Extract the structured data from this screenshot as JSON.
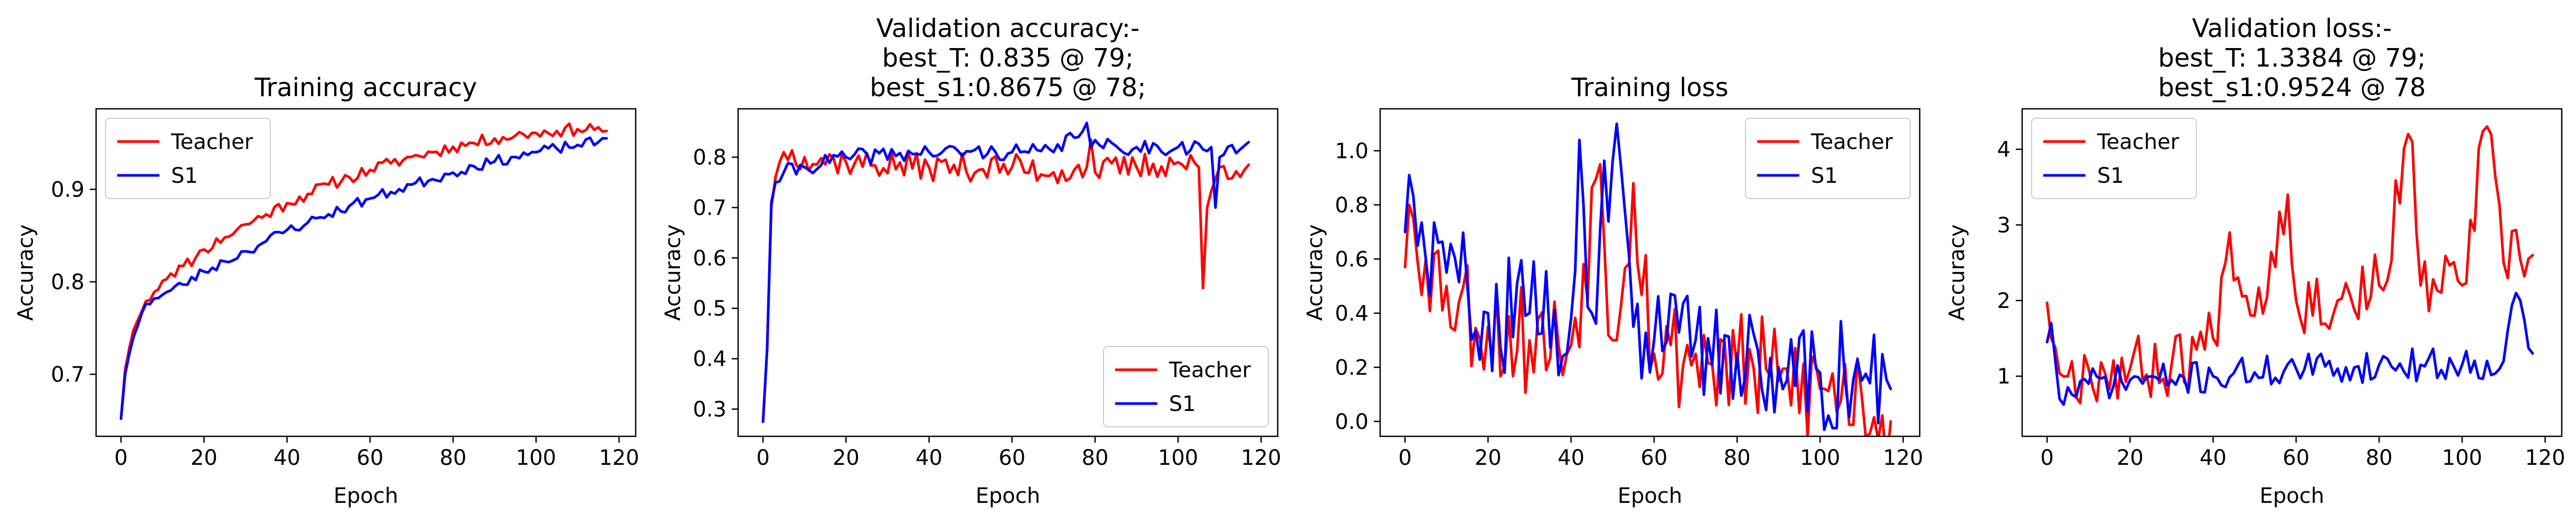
{
  "colors": {
    "Teacher": "#ff0000",
    "S1": "#0000ff"
  },
  "chart_data": [
    {
      "type": "line",
      "title": [
        "Training accuracy"
      ],
      "xlabel": "Epoch",
      "ylabel": "Accuracy",
      "xlim": [
        -6,
        124
      ],
      "ylim": [
        0.633,
        0.987
      ],
      "xticks": [
        0,
        20,
        40,
        60,
        80,
        100,
        120
      ],
      "yticks": [
        0.7,
        0.8,
        0.9
      ],
      "yticklabels": [
        "0.7",
        "0.8",
        "0.9"
      ],
      "legend": "top-left",
      "grid": false,
      "series": [
        {
          "name": "Teacher",
          "keypoints": [
            [
              0,
              0.652
            ],
            [
              1,
              0.705
            ],
            [
              2,
              0.728
            ],
            [
              3,
              0.748
            ],
            [
              4,
              0.758
            ],
            [
              5,
              0.768
            ],
            [
              6,
              0.779
            ],
            [
              8,
              0.789
            ],
            [
              10,
              0.801
            ],
            [
              12,
              0.809
            ],
            [
              15,
              0.817
            ],
            [
              18,
              0.826
            ],
            [
              20,
              0.835
            ],
            [
              25,
              0.848
            ],
            [
              30,
              0.862
            ],
            [
              35,
              0.873
            ],
            [
              40,
              0.885
            ],
            [
              45,
              0.895
            ],
            [
              50,
              0.905
            ],
            [
              55,
              0.913
            ],
            [
              60,
              0.921
            ],
            [
              65,
              0.928
            ],
            [
              70,
              0.935
            ],
            [
              75,
              0.94
            ],
            [
              80,
              0.946
            ],
            [
              85,
              0.95
            ],
            [
              90,
              0.955
            ],
            [
              95,
              0.958
            ],
            [
              100,
              0.961
            ],
            [
              105,
              0.963
            ],
            [
              110,
              0.965
            ],
            [
              115,
              0.967
            ],
            [
              117,
              0.963
            ]
          ],
          "noise": 0.007,
          "seed": 11
        },
        {
          "name": "S1",
          "keypoints": [
            [
              0,
              0.652
            ],
            [
              1,
              0.7
            ],
            [
              2,
              0.722
            ],
            [
              3,
              0.74
            ],
            [
              4,
              0.752
            ],
            [
              5,
              0.766
            ],
            [
              6,
              0.776
            ],
            [
              8,
              0.782
            ],
            [
              10,
              0.786
            ],
            [
              15,
              0.797
            ],
            [
              20,
              0.811
            ],
            [
              25,
              0.822
            ],
            [
              30,
              0.833
            ],
            [
              35,
              0.844
            ],
            [
              40,
              0.856
            ],
            [
              45,
              0.864
            ],
            [
              50,
              0.873
            ],
            [
              55,
              0.882
            ],
            [
              60,
              0.89
            ],
            [
              65,
              0.897
            ],
            [
              70,
              0.905
            ],
            [
              75,
              0.911
            ],
            [
              80,
              0.918
            ],
            [
              85,
              0.925
            ],
            [
              90,
              0.93
            ],
            [
              95,
              0.935
            ],
            [
              100,
              0.94
            ],
            [
              105,
              0.944
            ],
            [
              110,
              0.948
            ],
            [
              115,
              0.951
            ],
            [
              117,
              0.955
            ]
          ],
          "noise": 0.006,
          "seed": 23
        }
      ]
    },
    {
      "type": "line",
      "title": [
        "Validation accuracy:-",
        "best_T: 0.835 @ 79;",
        "best_s1:0.8675 @ 78;"
      ],
      "xlabel": "Epoch",
      "ylabel": "Accuracy",
      "xlim": [
        -6,
        124
      ],
      "ylim": [
        0.246,
        0.896
      ],
      "xticks": [
        0,
        20,
        40,
        60,
        80,
        100,
        120
      ],
      "yticks": [
        0.3,
        0.4,
        0.5,
        0.6,
        0.7,
        0.8
      ],
      "yticklabels": [
        "0.3",
        "0.4",
        "0.5",
        "0.6",
        "0.7",
        "0.8"
      ],
      "legend": "bottom-right",
      "grid": false,
      "series": [
        {
          "name": "Teacher",
          "keypoints": [
            [
              0,
              0.275
            ],
            [
              1,
              0.42
            ],
            [
              2,
              0.7
            ],
            [
              3,
              0.76
            ],
            [
              4,
              0.79
            ],
            [
              5,
              0.81
            ],
            [
              10,
              0.8
            ],
            [
              20,
              0.79
            ],
            [
              40,
              0.78
            ],
            [
              60,
              0.78
            ],
            [
              70,
              0.77
            ],
            [
              78,
              0.78
            ],
            [
              79,
              0.835
            ],
            [
              80,
              0.77
            ],
            [
              90,
              0.78
            ],
            [
              100,
              0.79
            ],
            [
              105,
              0.78
            ],
            [
              106,
              0.54
            ],
            [
              107,
              0.7
            ],
            [
              110,
              0.78
            ],
            [
              117,
              0.785
            ]
          ],
          "noise": 0.028,
          "seed": 37
        },
        {
          "name": "S1",
          "keypoints": [
            [
              0,
              0.275
            ],
            [
              1,
              0.42
            ],
            [
              2,
              0.71
            ],
            [
              3,
              0.75
            ],
            [
              5,
              0.77
            ],
            [
              10,
              0.78
            ],
            [
              20,
              0.8
            ],
            [
              40,
              0.81
            ],
            [
              60,
              0.81
            ],
            [
              70,
              0.81
            ],
            [
              78,
              0.868
            ],
            [
              79,
              0.82
            ],
            [
              90,
              0.82
            ],
            [
              100,
              0.82
            ],
            [
              108,
              0.82
            ],
            [
              109,
              0.7
            ],
            [
              110,
              0.8
            ],
            [
              117,
              0.83
            ]
          ],
          "noise": 0.016,
          "seed": 41
        }
      ]
    },
    {
      "type": "line",
      "title": [
        "Training loss"
      ],
      "xlabel": "Epoch",
      "ylabel": "Accuracy",
      "xlim": [
        -6,
        124
      ],
      "ylim": [
        -0.055,
        1.155
      ],
      "xticks": [
        0,
        20,
        40,
        60,
        80,
        100,
        120
      ],
      "yticks": [
        0.0,
        0.2,
        0.4,
        0.6,
        0.8,
        1.0
      ],
      "yticklabels": [
        "0.0",
        "0.2",
        "0.4",
        "0.6",
        "0.8",
        "1.0"
      ],
      "legend": "top-right",
      "grid": false,
      "series": [
        {
          "name": "Teacher",
          "keypoints": [
            [
              0,
              0.57
            ],
            [
              1,
              0.8
            ],
            [
              5,
              0.6
            ],
            [
              10,
              0.5
            ],
            [
              20,
              0.35
            ],
            [
              30,
              0.3
            ],
            [
              40,
              0.28
            ],
            [
              47,
              0.95
            ],
            [
              50,
              0.3
            ],
            [
              55,
              0.88
            ],
            [
              60,
              0.25
            ],
            [
              70,
              0.25
            ],
            [
              80,
              0.2
            ],
            [
              90,
              0.15
            ],
            [
              100,
              0.12
            ],
            [
              110,
              0.1
            ],
            [
              117,
              0.0
            ]
          ],
          "noise": 0.22,
          "seed": 53
        },
        {
          "name": "S1",
          "keypoints": [
            [
              0,
              0.7
            ],
            [
              1,
              0.91
            ],
            [
              5,
              0.6
            ],
            [
              10,
              0.55
            ],
            [
              20,
              0.4
            ],
            [
              30,
              0.4
            ],
            [
              40,
              0.38
            ],
            [
              42,
              1.04
            ],
            [
              45,
              0.4
            ],
            [
              51,
              1.1
            ],
            [
              55,
              0.35
            ],
            [
              60,
              0.3
            ],
            [
              70,
              0.3
            ],
            [
              80,
              0.25
            ],
            [
              90,
              0.2
            ],
            [
              100,
              0.18
            ],
            [
              110,
              0.15
            ],
            [
              117,
              0.12
            ]
          ],
          "noise": 0.22,
          "seed": 59
        }
      ]
    },
    {
      "type": "line",
      "title": [
        "Validation loss:-",
        "best_T: 1.3384 @ 79;",
        "best_s1:0.9524 @ 78"
      ],
      "xlabel": "Epoch",
      "ylabel": "Accuracy",
      "xlim": [
        -6,
        124
      ],
      "ylim": [
        0.205,
        4.535
      ],
      "xticks": [
        0,
        20,
        40,
        60,
        80,
        100,
        120
      ],
      "yticks": [
        1,
        2,
        3,
        4
      ],
      "yticklabels": [
        "1",
        "2",
        "3",
        "4"
      ],
      "legend": "top-left",
      "grid": false,
      "series": [
        {
          "name": "Teacher",
          "keypoints": [
            [
              0,
              1.97
            ],
            [
              1,
              1.5
            ],
            [
              5,
              1.0
            ],
            [
              10,
              1.1
            ],
            [
              20,
              1.1
            ],
            [
              30,
              1.15
            ],
            [
              40,
              1.5
            ],
            [
              44,
              2.9
            ],
            [
              50,
              1.8
            ],
            [
              58,
              3.4
            ],
            [
              60,
              2.0
            ],
            [
              70,
              2.0
            ],
            [
              80,
              2.2
            ],
            [
              88,
              4.1
            ],
            [
              90,
              2.2
            ],
            [
              100,
              2.2
            ],
            [
              106,
              4.3
            ],
            [
              110,
              2.5
            ],
            [
              117,
              2.6
            ]
          ],
          "noise": 0.45,
          "seed": 67
        },
        {
          "name": "S1",
          "keypoints": [
            [
              0,
              1.45
            ],
            [
              1,
              1.7
            ],
            [
              3,
              0.7
            ],
            [
              10,
              0.9
            ],
            [
              20,
              0.95
            ],
            [
              30,
              0.95
            ],
            [
              40,
              1.0
            ],
            [
              50,
              1.05
            ],
            [
              60,
              1.1
            ],
            [
              70,
              1.1
            ],
            [
              80,
              1.15
            ],
            [
              90,
              1.15
            ],
            [
              100,
              1.15
            ],
            [
              110,
              1.2
            ],
            [
              113,
              2.1
            ],
            [
              117,
              1.3
            ]
          ],
          "noise": 0.22,
          "seed": 71
        }
      ]
    }
  ]
}
